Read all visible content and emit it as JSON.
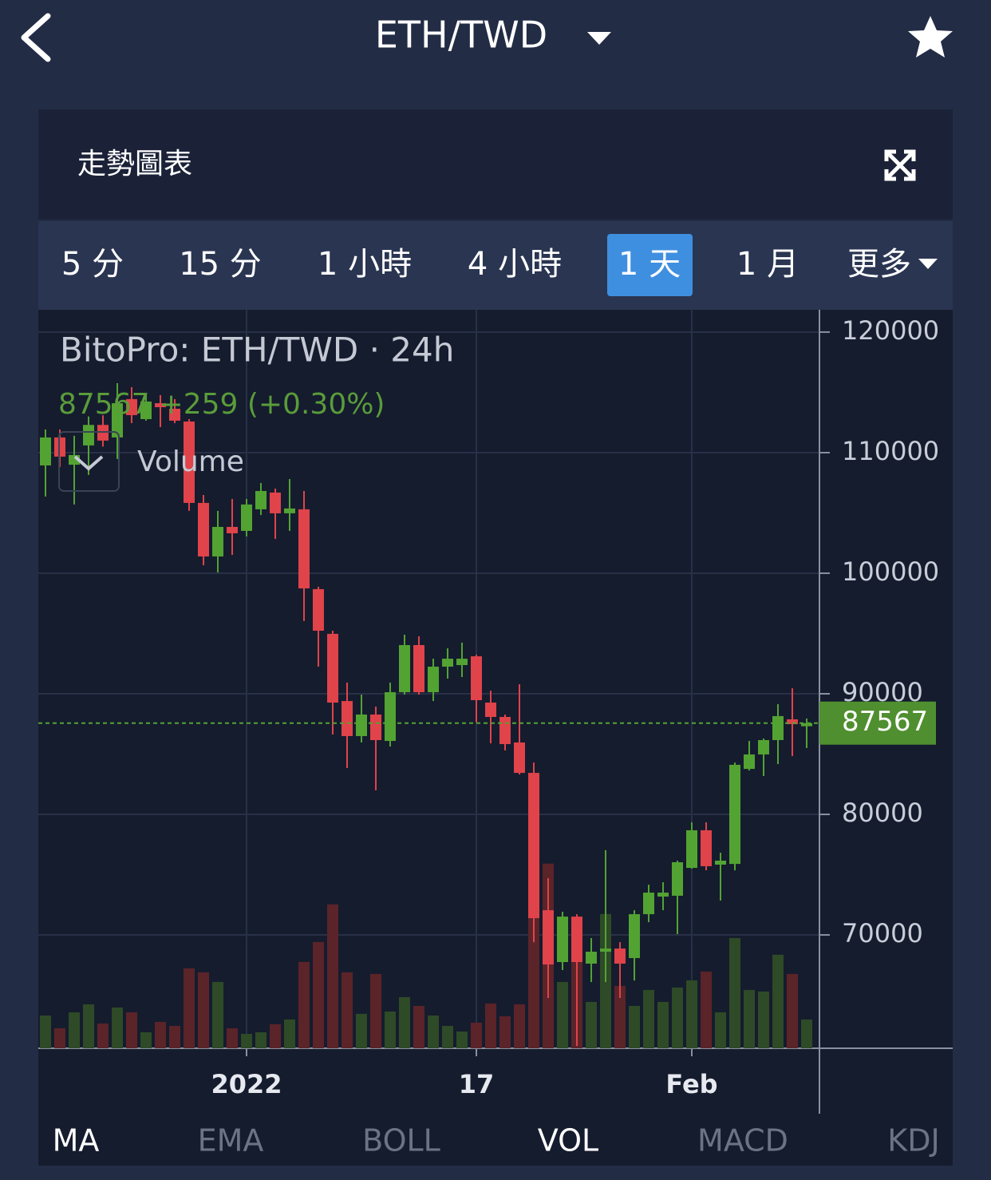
{
  "header": {
    "title": "ETH/TWD"
  },
  "panel": {
    "title": "走勢圖表"
  },
  "tabs": {
    "items": [
      "5 分",
      "15 分",
      "1 小時",
      "4 小時",
      "1 天",
      "1 月",
      "更多"
    ],
    "selected": 4
  },
  "chart_data": {
    "type": "candlestick",
    "title": "BitoPro: ETH/TWD · 24h",
    "last_price": 87567,
    "change": "+259 (+0.30%)",
    "volume_name": "Volume",
    "categories": [
      null,
      null,
      null,
      null,
      null,
      null,
      null,
      null,
      null,
      null,
      null,
      null,
      null,
      null,
      "2022",
      null,
      null,
      null,
      null,
      null,
      null,
      null,
      null,
      null,
      null,
      null,
      null,
      null,
      null,
      null,
      "17",
      null,
      null,
      null,
      null,
      null,
      null,
      null,
      null,
      null,
      null,
      null,
      null,
      null,
      null,
      "Feb",
      null,
      null,
      null,
      null,
      null,
      null,
      null,
      null
    ],
    "open": [
      108940,
      111260,
      109000,
      110600,
      112300,
      111260,
      114440,
      112780,
      114100,
      113640,
      112580,
      105830,
      101390,
      103840,
      103510,
      105300,
      106690,
      104970,
      105300,
      98680,
      94970,
      89400,
      86490,
      88280,
      86090,
      90130,
      94040,
      90130,
      92250,
      92380,
      93110,
      89270,
      88080,
      85960,
      83440,
      72050,
      67750,
      71520,
      67620,
      68610,
      68870,
      68080,
      71720,
      73180,
      73250,
      75560,
      78680,
      75830,
      75890,
      83770,
      84970,
      86160,
      87880,
      87308
    ],
    "high": [
      111920,
      111920,
      111400,
      113000,
      113100,
      115760,
      115430,
      114770,
      114770,
      114440,
      112780,
      106490,
      105170,
      106160,
      106160,
      107480,
      107020,
      107810,
      106820,
      98880,
      95230,
      90930,
      89930,
      88940,
      90930,
      94900,
      94770,
      92910,
      93770,
      94240,
      93240,
      90260,
      88280,
      90790,
      84300,
      74700,
      71920,
      71720,
      69740,
      77030,
      69400,
      72050,
      74170,
      74370,
      76160,
      79340,
      79340,
      76820,
      84300,
      86090,
      86290,
      89140,
      90460,
      87950
    ],
    "low": [
      106360,
      108810,
      105700,
      108150,
      110500,
      109470,
      112450,
      112650,
      112120,
      112450,
      105170,
      100660,
      100070,
      101520,
      103050,
      104830,
      102850,
      103510,
      96030,
      92250,
      86620,
      83840,
      85960,
      81990,
      85630,
      89930,
      89930,
      89400,
      91260,
      91390,
      87620,
      85890,
      85300,
      83310,
      69400,
      64770,
      67090,
      60790,
      66090,
      66090,
      64770,
      66220,
      71060,
      72050,
      70070,
      75500,
      75360,
      72850,
      75360,
      83640,
      83180,
      84170,
      84830,
      85500
    ],
    "close": [
      111260,
      109670,
      109800,
      112300,
      111000,
      114100,
      113110,
      114240,
      113770,
      112650,
      105830,
      101390,
      103840,
      103310,
      105700,
      106820,
      104970,
      105370,
      98740,
      95230,
      89270,
      86490,
      88280,
      86160,
      90130,
      94040,
      90130,
      92250,
      92910,
      92910,
      89470,
      88080,
      85830,
      83440,
      71390,
      67550,
      71520,
      67750,
      68610,
      68870,
      67620,
      71720,
      73510,
      73510,
      76030,
      78680,
      75700,
      76160,
      84110,
      84970,
      86160,
      88150,
      87480,
      87567
    ],
    "volume": [
      41,
      25,
      45,
      55,
      31,
      51,
      45,
      20,
      33,
      28,
      100,
      95,
      83,
      25,
      18,
      20,
      30,
      36,
      108,
      133,
      180,
      95,
      43,
      93,
      46,
      64,
      53,
      41,
      28,
      21,
      32,
      56,
      40,
      55,
      163,
      231,
      83,
      113,
      58,
      168,
      78,
      53,
      73,
      58,
      76,
      85,
      96,
      45,
      138,
      73,
      71,
      117,
      93,
      36
    ],
    "up_color": "#53a333",
    "down_color": "#e0434a",
    "up_volume_color": "#2e4a27",
    "down_volume_color": "#5b2429",
    "ylim": [
      60600,
      121850
    ],
    "yticks": [
      70000,
      80000,
      90000,
      100000,
      110000,
      120000
    ],
    "grid": true
  },
  "indicators": {
    "items": [
      {
        "label": "MA",
        "active": true
      },
      {
        "label": "EMA",
        "active": false
      },
      {
        "label": "BOLL",
        "active": false
      },
      {
        "label": "VOL",
        "active": true
      },
      {
        "label": "MACD",
        "active": false
      },
      {
        "label": "KDJ",
        "active": false
      }
    ]
  }
}
